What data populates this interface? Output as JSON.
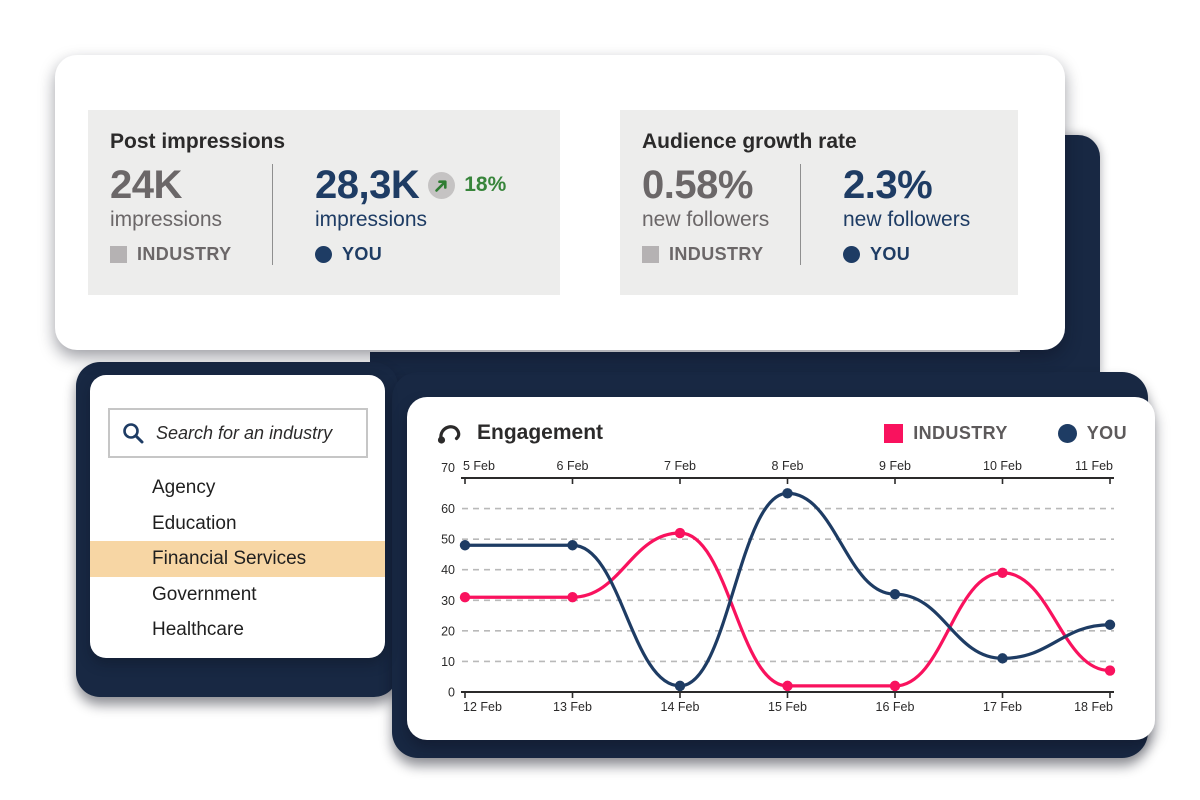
{
  "colors": {
    "backdrop_navy": "#182843",
    "navy": "#1e3c64",
    "pink": "#f9125e",
    "gray_text": "#6b6768",
    "legend_gray": "#5d5a5b",
    "marker_gray": "#b5b2b3",
    "panel_bg": "#ededec",
    "green": "#38853b",
    "highlight_peach": "#f7d6a4",
    "ink": "#2b2a2a",
    "gridline": "#b9b9b9"
  },
  "stats": {
    "panels": [
      {
        "title": "Post impressions",
        "industry": {
          "value": "24K",
          "unit": "impressions",
          "legend": "INDUSTRY"
        },
        "you": {
          "value": "28,3K",
          "unit": "impressions",
          "legend": "YOU",
          "delta": "18%"
        }
      },
      {
        "title": "Audience growth rate",
        "industry": {
          "value": "0.58%",
          "unit": "new followers",
          "legend": "INDUSTRY"
        },
        "you": {
          "value": "2.3%",
          "unit": "new followers",
          "legend": "YOU"
        }
      }
    ]
  },
  "search": {
    "placeholder": "Search for an industry",
    "items": [
      "Agency",
      "Education",
      "Financial Services",
      "Government",
      "Healthcare"
    ],
    "selected": "Financial Services"
  },
  "chart_data": {
    "type": "line",
    "title": "Engagement",
    "legend_position": "top-right",
    "grid": "horizontal-dashed",
    "ylim": [
      0,
      70
    ],
    "y_ticks": [
      0,
      10,
      20,
      30,
      40,
      50,
      60,
      70
    ],
    "top_axis_labels": [
      "5 Feb",
      "6 Feb",
      "7 Feb",
      "8 Feb",
      "9 Feb",
      "10 Feb",
      "11 Feb"
    ],
    "bottom_axis_labels": [
      "12 Feb",
      "13 Feb",
      "14 Feb",
      "15 Feb",
      "16 Feb",
      "17 Feb",
      "18 Feb"
    ],
    "series": [
      {
        "name": "INDUSTRY",
        "color": "#f9125e",
        "marker": "square",
        "values": [
          31,
          31,
          52,
          2,
          2,
          39,
          7
        ]
      },
      {
        "name": "YOU",
        "color": "#1e3c64",
        "marker": "circle",
        "values": [
          48,
          48,
          2,
          65,
          32,
          11,
          22
        ]
      }
    ]
  }
}
